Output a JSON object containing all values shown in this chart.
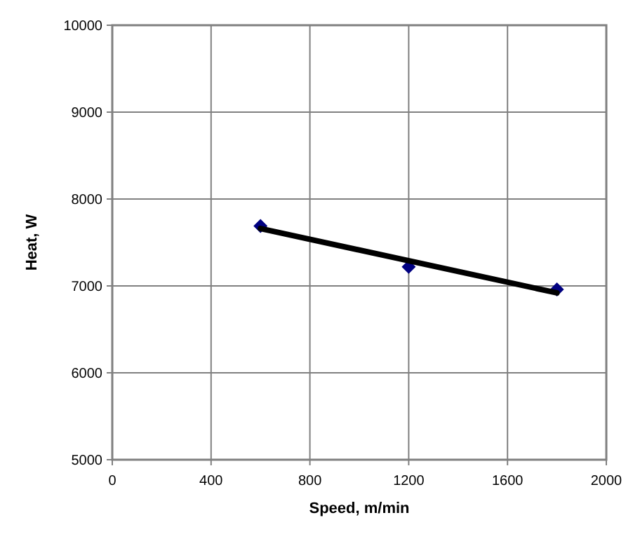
{
  "chart_data": {
    "type": "scatter",
    "xlabel": "Speed, m/min",
    "ylabel": "Heat, W",
    "xlim": [
      0,
      2000
    ],
    "xticks": [
      0,
      400,
      800,
      1200,
      1600,
      2000
    ],
    "ylim": [
      5000,
      10000
    ],
    "yticks": [
      5000,
      6000,
      7000,
      8000,
      9000,
      10000
    ],
    "grid": true,
    "marker": "diamond",
    "series": [
      {
        "color": "#000080",
        "x": [
          600,
          1200,
          1800
        ],
        "values": [
          7690,
          7220,
          6960
        ]
      },
      {
        "type": "line",
        "color": "#000000",
        "x": [
          600,
          1800
        ],
        "values": [
          7660,
          6920
        ],
        "marker": "none",
        "line_style": "solid"
      }
    ]
  }
}
